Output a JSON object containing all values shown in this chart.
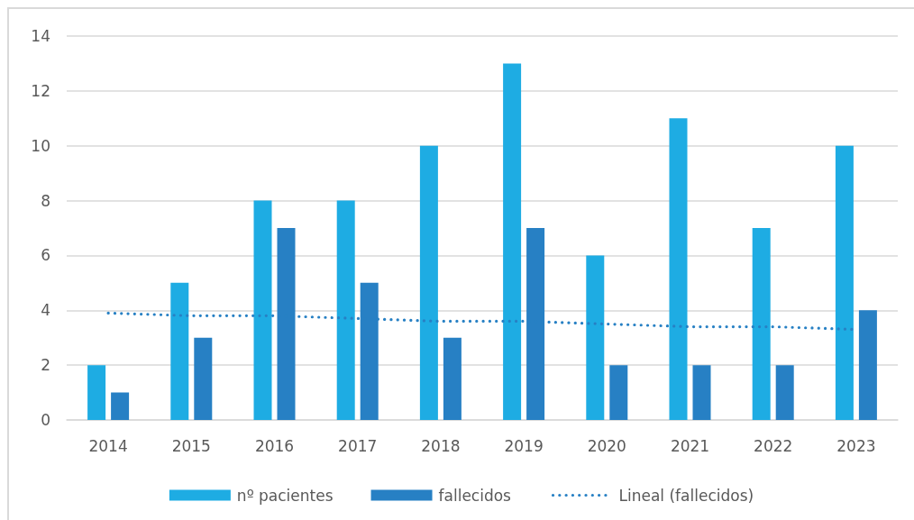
{
  "chart_data": {
    "type": "bar",
    "categories": [
      "2014",
      "2015",
      "2016",
      "2017",
      "2018",
      "2019",
      "2020",
      "2021",
      "2022",
      "2023"
    ],
    "series": [
      {
        "name": "nº pacientes",
        "color": "#1eace3",
        "values": [
          2,
          5,
          8,
          8,
          10,
          13,
          6,
          11,
          7,
          10
        ]
      },
      {
        "name": "fallecidos",
        "color": "#2780c4",
        "values": [
          1,
          3,
          7,
          5,
          3,
          7,
          2,
          2,
          2,
          4
        ]
      },
      {
        "name": "Lineal (fallecidos)",
        "type": "line",
        "color": "#2780c4",
        "values": [
          3.9,
          3.8,
          3.8,
          3.7,
          3.6,
          3.6,
          3.5,
          3.4,
          3.4,
          3.3
        ],
        "line_style": "dotted"
      }
    ],
    "ylim": [
      0,
      14
    ],
    "yticks": [
      0,
      2,
      4,
      6,
      8,
      10,
      12,
      14
    ],
    "grid": "y",
    "legend": "bottom"
  }
}
